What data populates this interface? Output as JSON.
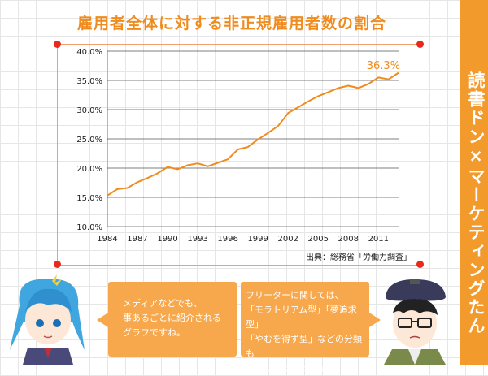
{
  "header": {
    "title": "雇用者全体に対する非正規雇用者数の割合"
  },
  "side_banner": {
    "text": "読書ドン×マーケティングたん"
  },
  "source_note": "出典：総務省「労働力調査」",
  "annotation": {
    "end_value_label": "36.3%"
  },
  "speech": {
    "left_lines": [
      "メディアなどでも、",
      "事あるごとに紹介される",
      "グラフですね。"
    ],
    "right_lines": [
      "フリーターに関しては、",
      "「モラトリアム型」「夢追求型」",
      "「やむを得ず型」などの分類も",
      "されているようだな。"
    ]
  },
  "colors": {
    "accent": "#f08c1e",
    "line": "#f08c1e",
    "banner": "#f39a2c",
    "bubble": "#f7a84d",
    "pin": "#e8291c"
  },
  "chart_data": {
    "type": "line",
    "title": "雇用者全体に対する非正規雇用者数の割合",
    "xlabel": "",
    "ylabel": "",
    "x_ticks": [
      "1984",
      "1987",
      "1990",
      "1993",
      "1996",
      "1999",
      "2002",
      "2005",
      "2008",
      "2011"
    ],
    "y_ticks": [
      "10.0%",
      "15.0%",
      "20.0%",
      "25.0%",
      "30.0%",
      "35.0%",
      "40.0%"
    ],
    "ylim": [
      10,
      40
    ],
    "xlim": [
      1984,
      2013
    ],
    "grid": true,
    "legend": "none",
    "series": [
      {
        "x": [
          1984,
          1985,
          1986,
          1987,
          1988,
          1989,
          1990,
          1991,
          1992,
          1993,
          1994,
          1995,
          1996,
          1997,
          1998,
          1999,
          2000,
          2001,
          2002,
          2003,
          2004,
          2005,
          2006,
          2007,
          2008,
          2009,
          2010,
          2011,
          2012,
          2013
        ],
        "values": [
          15.3,
          16.4,
          16.6,
          17.6,
          18.3,
          19.1,
          20.2,
          19.8,
          20.5,
          20.8,
          20.3,
          20.9,
          21.5,
          23.2,
          23.6,
          24.9,
          26.0,
          27.2,
          29.4,
          30.4,
          31.4,
          32.3,
          33.0,
          33.7,
          34.1,
          33.7,
          34.4,
          35.5,
          35.2,
          36.3
        ]
      }
    ]
  }
}
